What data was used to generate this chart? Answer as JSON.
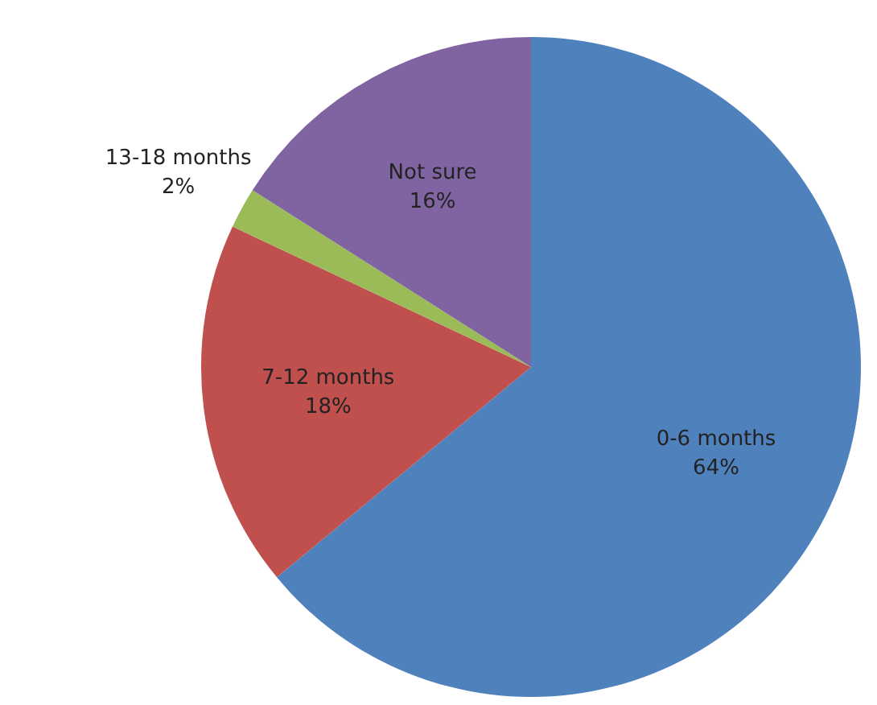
{
  "chart_data": {
    "type": "pie",
    "categories": [
      "0-6 months",
      "7-12 months",
      "13-18 months",
      "Not sure"
    ],
    "values": [
      64,
      18,
      2,
      16
    ],
    "value_labels": [
      "64%",
      "18%",
      "2%",
      "16%"
    ],
    "colors": [
      "#4f81bd",
      "#c0504d",
      "#9bbb59",
      "#8064a2"
    ],
    "legend": false
  }
}
